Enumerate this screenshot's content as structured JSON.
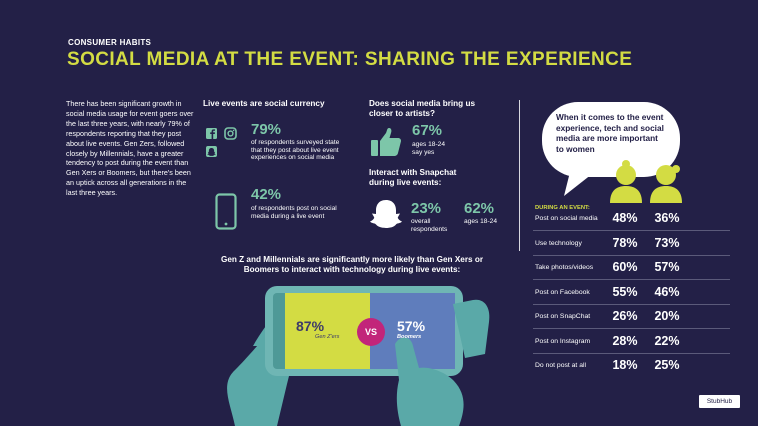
{
  "header": {
    "kicker": "CONSUMER HABITS",
    "title": "SOCIAL MEDIA AT THE EVENT: SHARING THE EXPERIENCE"
  },
  "intro": "There has been significant growth in social media usage for event goers over the last three years, with nearly 79% of respondents reporting that they post about live events. Gen Zers, followed closely by Millennials, have a greater tendency to post during the event than Gen Xers or Boomers, but there's been an uptick across all generations in the last three years.",
  "social_currency": {
    "heading": "Live events are social currency",
    "stat1_value": "79%",
    "stat1_text": "of respondents surveyed state that they post about live event experiences on social media",
    "stat2_value": "42%",
    "stat2_text": "of respondents post on social media during a live event"
  },
  "artists": {
    "heading": "Does social media bring us closer to artists?",
    "value": "67%",
    "text": "ages 18-24 say yes"
  },
  "snapchat": {
    "heading": "Interact with Snapchat during live events:",
    "overall_value": "23%",
    "overall_label": "overall respondents",
    "young_value": "62%",
    "young_label": "ages 18-24"
  },
  "technology": {
    "heading": "Gen Z and Millennials are significantly more likely than Gen Xers or Boomers to interact with technology during live events:",
    "genz_value": "87%",
    "genz_label": "Gen Z'ers",
    "vs_label": "VS",
    "boomers_value": "57%",
    "boomers_label": "Boomers"
  },
  "gender": {
    "bubble_text": "When it comes to the event experience, tech and social media are more important to women",
    "table_heading": "DURING AN EVENT:",
    "rows": [
      {
        "label": "Post on social media",
        "women": "48%",
        "men": "36%"
      },
      {
        "label": "Use technology",
        "women": "78%",
        "men": "73%"
      },
      {
        "label": "Take photos/videos",
        "women": "60%",
        "men": "57%"
      },
      {
        "label": "Post on Facebook",
        "women": "55%",
        "men": "46%"
      },
      {
        "label": "Post on SnapChat",
        "women": "26%",
        "men": "20%"
      },
      {
        "label": "Post on Instagram",
        "women": "28%",
        "men": "22%"
      },
      {
        "label": "Do not post at all",
        "women": "18%",
        "men": "25%"
      }
    ]
  },
  "logo": "StubHub",
  "colors": {
    "background": "#232047",
    "accent_yellow": "#d3dc43",
    "accent_green": "#7dc6a9",
    "accent_blue": "#5f7dbc",
    "accent_pink": "#c2257a"
  }
}
